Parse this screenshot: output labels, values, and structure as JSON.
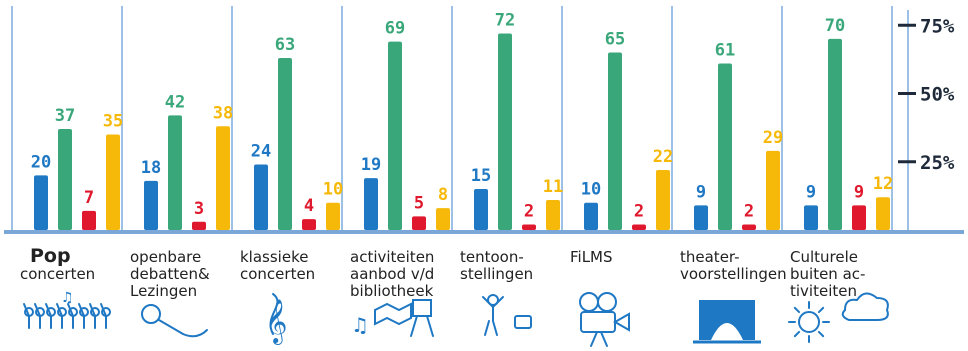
{
  "chart_data": {
    "type": "bar",
    "title": "",
    "xlabel": "",
    "ylabel": "",
    "ylim": [
      0,
      80
    ],
    "yticks": [
      "25%",
      "50%",
      "75%"
    ],
    "ytick_values": [
      25,
      50,
      75
    ],
    "grid": false,
    "legend": "none",
    "categories": [
      [
        "Pop",
        "concerten"
      ],
      [
        "openbare",
        "debatten&",
        "Lezingen"
      ],
      [
        "klassieke",
        "concerten"
      ],
      [
        "activiteiten",
        "aanbod v/d",
        "bibliotheek"
      ],
      [
        "tentoon-",
        "stellingen"
      ],
      [
        "FiLMS"
      ],
      [
        "theater-",
        "voorstellingen"
      ],
      [
        "Culturele",
        "buiten ac-",
        "tiviteiten"
      ]
    ],
    "series": [
      {
        "color": "#1f78c4",
        "values": [
          20,
          18,
          24,
          19,
          15,
          10,
          9,
          9
        ]
      },
      {
        "color": "#3aa77a",
        "values": [
          37,
          42,
          63,
          69,
          72,
          65,
          61,
          70
        ]
      },
      {
        "color": "#e0182d",
        "values": [
          7,
          3,
          4,
          5,
          2,
          2,
          2,
          9
        ]
      },
      {
        "color": "#f6b90a",
        "values": [
          35,
          38,
          10,
          8,
          11,
          22,
          29,
          12
        ]
      }
    ],
    "icons": [
      "crowd-icon",
      "microphone-icon",
      "treble-clef-icon",
      "book-easel-icon",
      "statue-icon",
      "film-camera-icon",
      "stage-curtain-icon",
      "sun-cloud-icon"
    ]
  },
  "colors": {
    "baseline": "#7aa6d8",
    "divider": "#9cc0e6",
    "tick_mark": "#1e2a3a",
    "icon": "#1f78c4"
  }
}
